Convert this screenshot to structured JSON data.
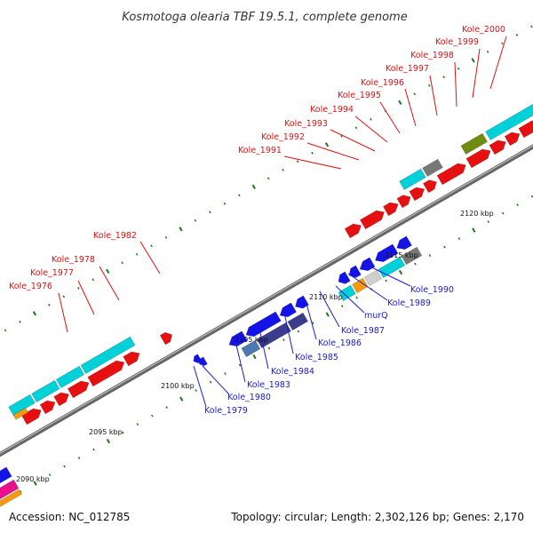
{
  "title": "Kosmotoga olearia TBF 19.5.1, complete genome",
  "footer": {
    "accession": "Accession: NC_012785",
    "summary": "Topology: circular; Length: 2,302,126 bp; Genes: 2,170"
  },
  "colors": {
    "forward": "#e61010",
    "reverse": "#1414e8",
    "cyan": "#00d0d8",
    "olive": "#6f8c10",
    "gray": "#777777",
    "lightgray": "#cfcfcf",
    "orange": "#f59a10",
    "magenta": "#e8108c",
    "navy": "#3c3c8c",
    "steel": "#4a7ab0",
    "backbone": "#888888",
    "tick": "#1a7a1a",
    "label_red": "#e01010",
    "label_blue": "#1a1ad0"
  },
  "kbp_ticks": [
    "2090 kbp",
    "2095 kbp",
    "2100 kbp",
    "2105 kbp",
    "2110 kbp",
    "2115 kbp",
    "2120 kbp"
  ],
  "labels_forward": [
    "Kole_1976",
    "Kole_1977",
    "Kole_1978",
    "Kole_1982",
    "Kole_1991",
    "Kole_1992",
    "Kole_1993",
    "Kole_1994",
    "Kole_1995",
    "Kole_1996",
    "Kole_1997",
    "Kole_1998",
    "Kole_1999",
    "Kole_2000"
  ],
  "labels_reverse": [
    "Kole_1979",
    "Kole_1980",
    "Kole_1983",
    "Kole_1984",
    "Kole_1985",
    "Kole_1986",
    "Kole_1987",
    "murQ",
    "Kole_1989",
    "Kole_1990"
  ]
}
